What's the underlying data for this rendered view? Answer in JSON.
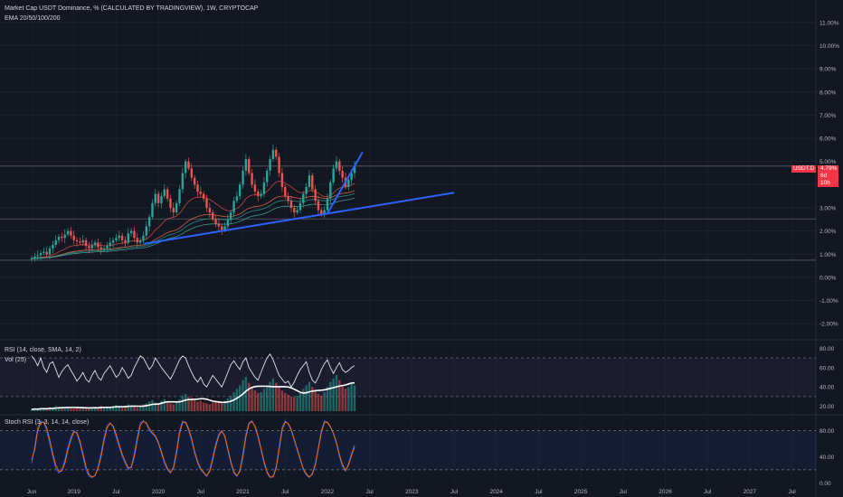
{
  "header": {
    "title": "Market Cap USDT Dominance, % (CALCULATED BY TRADINGVIEW), 1W, CRYPTOCAP",
    "ema_label": "EMA 20/50/100/200"
  },
  "indicators": {
    "rsi_label": "RSI (14, close, SMA, 14, 2)",
    "vol_label": "Vol (25)",
    "stoch_label": "Stoch RSI (3, 3, 14, 14, close)"
  },
  "price_badge": {
    "symbol": "USDT.D",
    "value": "4.79%",
    "countdown": "6d 10h"
  },
  "colors": {
    "background": "#131722",
    "up": "#26a69a",
    "down": "#ef5350",
    "trendline": "#2962ff",
    "ema20": "#ef5350",
    "ema50": "#ff7043",
    "ema100": "#26a69a",
    "ema200": "#4db6ac",
    "rsi": "#e0e3eb",
    "stoch_k": "#2962ff",
    "stoch_d": "#ff6d00"
  },
  "chart_data": [
    {
      "type": "candlestick",
      "panel": "price",
      "y_ticks": [
        "11.00%",
        "10.00%",
        "9.00%",
        "8.00%",
        "7.00%",
        "6.00%",
        "5.00%",
        "4.00%",
        "3.00%",
        "2.00%",
        "1.00%",
        "0.00%",
        "-1.00%",
        "-2.00%"
      ],
      "y_range": [
        -2.5,
        11.5
      ],
      "x_labels": [
        "Jun",
        "2019",
        "Jul",
        "2020",
        "Jul",
        "2021",
        "Jul",
        "2022",
        "Jul",
        "2023",
        "Jul",
        "2024",
        "Jul",
        "2025",
        "Jul",
        "2026",
        "Jul",
        "2027",
        "Jul"
      ],
      "horizontal_levels": [
        4.8,
        2.52,
        0.74
      ],
      "last_value": 4.79,
      "trendlines": [
        {
          "from": [
            "2019-10",
            1.45
          ],
          "to": [
            "2023-06",
            3.65
          ]
        },
        {
          "from": [
            "2021-12",
            2.75
          ],
          "to": [
            "2022-05",
            5.4
          ]
        }
      ],
      "close_series": [
        0.82,
        0.9,
        0.95,
        1.05,
        1.1,
        0.98,
        1.25,
        1.4,
        1.6,
        1.75,
        1.7,
        1.85,
        2.0,
        1.8,
        1.6,
        1.55,
        1.5,
        1.6,
        1.35,
        1.25,
        1.4,
        1.5,
        1.3,
        1.2,
        1.25,
        1.35,
        1.5,
        1.6,
        1.7,
        1.8,
        1.6,
        1.5,
        1.9,
        2.0,
        1.7,
        1.5,
        1.6,
        1.8,
        2.2,
        2.6,
        3.2,
        3.6,
        3.2,
        3.5,
        3.8,
        3.4,
        3.0,
        2.8,
        3.2,
        3.8,
        4.5,
        5.0,
        4.7,
        4.3,
        4.0,
        3.7,
        3.6,
        3.4,
        3.0,
        2.8,
        2.5,
        2.3,
        2.2,
        2.05,
        2.2,
        2.5,
        2.8,
        3.3,
        3.5,
        4.0,
        4.6,
        5.1,
        4.5,
        4.0,
        3.7,
        3.5,
        3.6,
        4.1,
        4.6,
        5.1,
        5.5,
        5.2,
        4.5,
        3.9,
        3.5,
        3.3,
        3.0,
        2.8,
        2.9,
        3.2,
        3.6,
        3.9,
        4.4,
        3.8,
        3.3,
        2.9,
        2.7,
        2.9,
        3.4,
        4.1,
        4.7,
        5.0,
        4.6,
        4.3,
        3.9,
        4.2,
        4.5,
        4.79
      ],
      "ema_periods": [
        20,
        50,
        100,
        200
      ]
    },
    {
      "type": "line",
      "panel": "rsi",
      "series": [
        {
          "name": "RSI",
          "values": [
            72,
            68,
            62,
            70,
            60,
            55,
            64,
            66,
            58,
            50,
            56,
            60,
            63,
            57,
            52,
            46,
            50,
            55,
            48,
            45,
            52,
            57,
            50,
            47,
            54,
            58,
            62,
            56,
            50,
            53,
            60,
            55,
            49,
            52,
            60,
            66,
            72,
            70,
            64,
            58,
            62,
            70,
            65,
            60,
            56,
            52,
            48,
            54,
            61,
            68,
            72,
            70,
            62,
            55,
            49,
            45,
            50,
            43,
            40,
            46,
            52,
            48,
            44,
            40,
            47,
            55,
            63,
            67,
            62,
            58,
            66,
            70,
            60,
            55,
            50,
            47,
            55,
            63,
            70,
            74,
            68,
            60,
            52,
            48,
            44,
            46,
            40,
            45,
            52,
            58,
            62,
            66,
            55,
            47,
            44,
            50,
            58,
            64,
            68,
            60,
            54,
            60,
            65,
            58,
            55,
            57,
            60,
            62
          ]
        }
      ],
      "y_ticks": [
        "80.00",
        "60.00",
        "40.00",
        "20.00"
      ],
      "y_range": [
        15,
        85
      ],
      "band": [
        70,
        30
      ]
    },
    {
      "type": "bar",
      "panel": "volume",
      "series": [
        {
          "name": "Vol",
          "values": [
            2,
            3,
            2,
            4,
            3,
            3,
            5,
            4,
            6,
            5,
            4,
            3,
            5,
            4,
            3,
            4,
            3,
            5,
            4,
            3,
            4,
            5,
            4,
            6,
            5,
            4,
            5,
            6,
            7,
            5,
            4,
            6,
            8,
            7,
            5,
            4,
            6,
            8,
            9,
            11,
            13,
            10,
            9,
            12,
            14,
            11,
            9,
            8,
            10,
            14,
            18,
            20,
            17,
            15,
            13,
            11,
            12,
            10,
            9,
            8,
            10,
            12,
            11,
            9,
            12,
            15,
            18,
            22,
            26,
            30,
            36,
            40,
            33,
            28,
            24,
            21,
            22,
            26,
            30,
            34,
            38,
            33,
            28,
            24,
            21,
            19,
            17,
            16,
            18,
            21,
            26,
            30,
            34,
            28,
            24,
            20,
            18,
            22,
            28,
            34,
            38,
            42,
            36,
            30,
            26,
            28,
            32,
            30
          ]
        }
      ]
    },
    {
      "type": "line",
      "panel": "stoch_rsi",
      "series": [
        {
          "name": "K",
          "values": [
            30,
            55,
            85,
            95,
            92,
            80,
            60,
            40,
            22,
            15,
            20,
            35,
            55,
            70,
            80,
            75,
            60,
            40,
            20,
            10,
            8,
            12,
            25,
            45,
            70,
            88,
            92,
            85,
            70,
            55,
            40,
            30,
            20,
            25,
            45,
            70,
            92,
            95,
            90,
            80,
            75,
            70,
            60,
            45,
            30,
            20,
            15,
            25,
            50,
            80,
            95,
            92,
            80,
            65,
            45,
            30,
            20,
            15,
            10,
            20,
            40,
            60,
            75,
            80,
            70,
            50,
            30,
            15,
            10,
            20,
            45,
            75,
            92,
            95,
            85,
            70,
            50,
            30,
            15,
            8,
            10,
            25,
            55,
            85,
            95,
            90,
            80,
            65,
            50,
            35,
            20,
            12,
            8,
            15,
            30,
            55,
            80,
            95,
            92,
            85,
            75,
            60,
            40,
            25,
            18,
            30,
            45,
            58
          ]
        },
        {
          "name": "D",
          "values": [
            35,
            50,
            80,
            92,
            93,
            84,
            66,
            45,
            27,
            18,
            18,
            30,
            50,
            66,
            78,
            77,
            64,
            45,
            25,
            13,
            9,
            11,
            22,
            40,
            65,
            84,
            91,
            87,
            74,
            59,
            44,
            33,
            23,
            23,
            40,
            65,
            88,
            94,
            92,
            83,
            77,
            72,
            62,
            48,
            33,
            22,
            16,
            22,
            45,
            75,
            92,
            93,
            83,
            68,
            48,
            33,
            22,
            16,
            11,
            17,
            35,
            56,
            72,
            79,
            72,
            53,
            33,
            17,
            11,
            17,
            40,
            70,
            90,
            94,
            87,
            72,
            53,
            33,
            17,
            9,
            9,
            22,
            50,
            81,
            93,
            91,
            82,
            67,
            52,
            37,
            22,
            14,
            9,
            13,
            27,
            52,
            77,
            92,
            93,
            86,
            76,
            62,
            43,
            28,
            19,
            27,
            42,
            55
          ]
        }
      ],
      "y_ticks": [
        "80.00",
        "40.00",
        "0.00"
      ],
      "y_range": [
        -5,
        100
      ],
      "band": [
        80,
        20
      ]
    }
  ]
}
